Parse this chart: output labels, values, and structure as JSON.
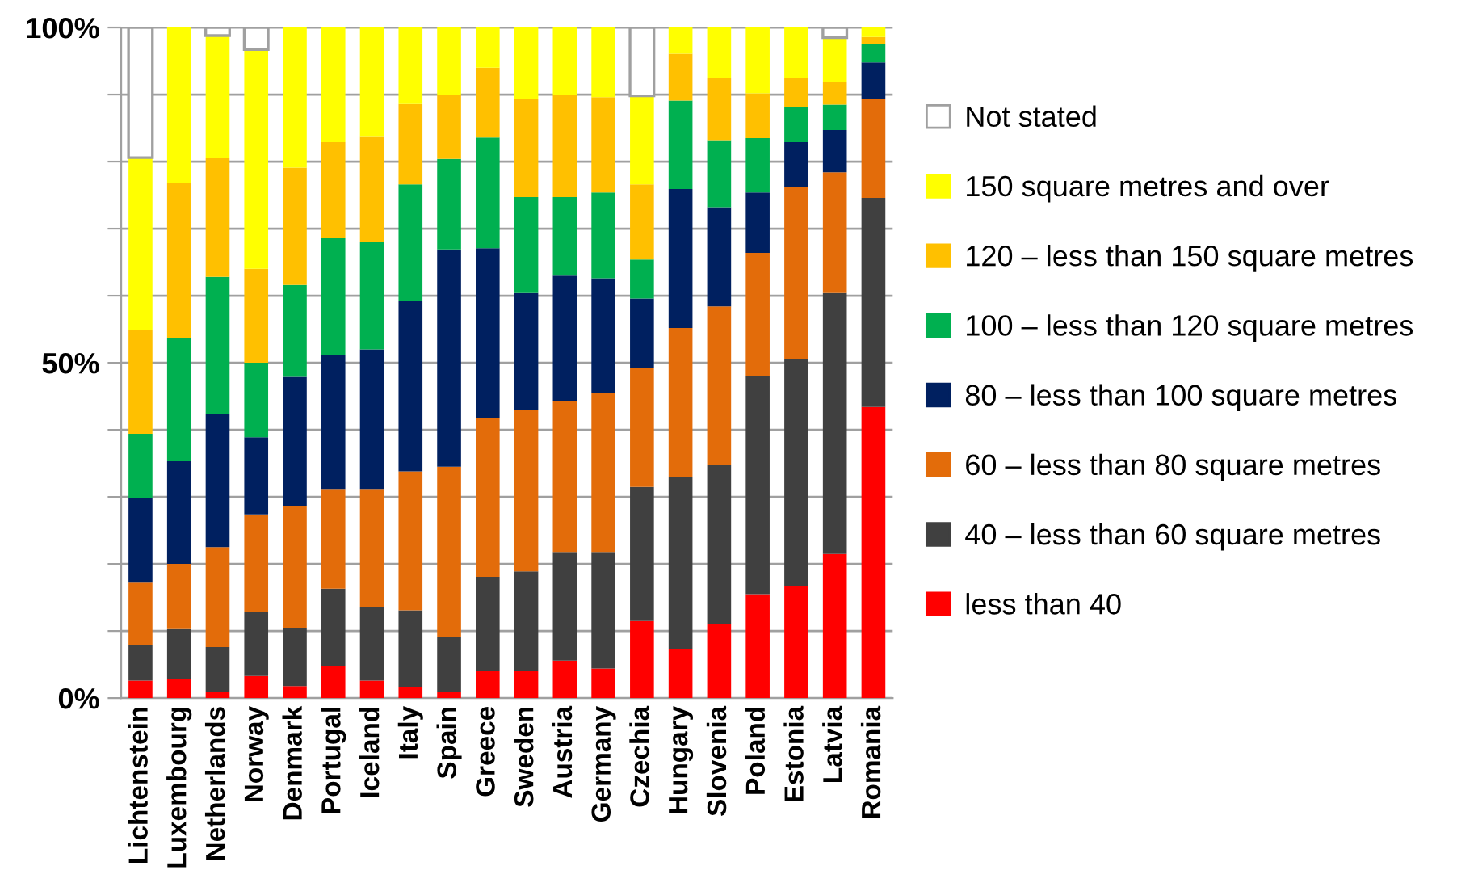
{
  "chart_data": {
    "type": "bar",
    "stacked": true,
    "grid": "y",
    "legend": "right",
    "categories": [
      "Lichtenstein",
      "Luxembourg",
      "Netherlands",
      "Norway",
      "Denmark",
      "Portugal",
      "Iceland",
      "Italy",
      "Spain",
      "Greece",
      "Sweden",
      "Austria",
      "Germany",
      "Czechia",
      "Hungary",
      "Slovenia",
      "Poland",
      "Estonia",
      "Latvia",
      "Romania"
    ],
    "ylim": [
      0,
      100
    ],
    "yticks": [
      {
        "value": 0,
        "label": "0%"
      },
      {
        "value": 10,
        "label": null
      },
      {
        "value": 20,
        "label": null
      },
      {
        "value": 30,
        "label": null
      },
      {
        "value": 40,
        "label": null
      },
      {
        "value": 50,
        "label": "50%"
      },
      {
        "value": 60,
        "label": null
      },
      {
        "value": 70,
        "label": null
      },
      {
        "value": 80,
        "label": null
      },
      {
        "value": 90,
        "label": null
      },
      {
        "value": 100,
        "label": "100%"
      }
    ],
    "series": [
      {
        "name": "less than 40",
        "color": "#ff0000",
        "values": [
          2.6,
          2.9,
          0.9,
          3.3,
          1.8,
          4.7,
          2.6,
          1.7,
          0.9,
          4.1,
          4.1,
          5.6,
          4.4,
          11.5,
          7.3,
          11.1,
          15.5,
          16.7,
          21.5,
          43.4
        ]
      },
      {
        "name": "40 – less than 60 square metres",
        "color": "#404040",
        "values": [
          5.3,
          7.4,
          6.7,
          9.5,
          8.7,
          11.6,
          10.9,
          11.4,
          8.2,
          14.0,
          14.8,
          16.2,
          17.4,
          20.0,
          25.7,
          23.6,
          32.5,
          33.9,
          38.9,
          31.2
        ]
      },
      {
        "name": "60 – less than 80 square metres",
        "color": "#e36c0a",
        "values": [
          9.3,
          9.7,
          14.9,
          14.6,
          18.2,
          14.9,
          17.7,
          20.7,
          25.4,
          23.7,
          24.0,
          22.5,
          23.7,
          17.8,
          22.2,
          23.7,
          18.4,
          25.6,
          18.0,
          14.7
        ]
      },
      {
        "name": "80 – less than 100 square metres",
        "color": "#002060",
        "values": [
          12.6,
          15.3,
          19.8,
          11.5,
          19.2,
          19.9,
          20.8,
          25.5,
          32.4,
          25.3,
          17.5,
          18.7,
          17.1,
          10.3,
          20.7,
          14.8,
          9.0,
          6.7,
          6.3,
          5.5
        ]
      },
      {
        "name": "100 – less than 120 square metres",
        "color": "#00b050",
        "values": [
          9.6,
          18.4,
          20.5,
          11.1,
          13.7,
          17.5,
          16.0,
          17.3,
          13.5,
          16.5,
          14.3,
          11.7,
          12.8,
          5.8,
          13.2,
          10.0,
          8.1,
          5.3,
          3.8,
          2.7
        ]
      },
      {
        "name": "120 – less than 150 square metres",
        "color": "#ffc000",
        "values": [
          15.5,
          23.1,
          17.8,
          14.0,
          17.5,
          14.3,
          15.8,
          12.0,
          9.6,
          10.4,
          14.6,
          15.3,
          14.2,
          11.2,
          7.0,
          9.3,
          6.7,
          4.3,
          3.4,
          1.1
        ]
      },
      {
        "name": "150 square metres and over",
        "color": "#ffff00",
        "values": [
          25.7,
          23.2,
          18.2,
          32.7,
          20.9,
          17.1,
          16.2,
          11.4,
          10.0,
          6.0,
          10.7,
          10.0,
          10.4,
          13.2,
          3.9,
          7.5,
          9.8,
          7.5,
          6.6,
          1.4
        ]
      },
      {
        "name": "Not stated",
        "color": "#ffffff",
        "values": [
          19.4,
          null,
          1.2,
          3.3,
          null,
          null,
          null,
          null,
          null,
          null,
          null,
          null,
          null,
          10.2,
          null,
          null,
          null,
          null,
          1.5,
          null
        ]
      }
    ]
  }
}
